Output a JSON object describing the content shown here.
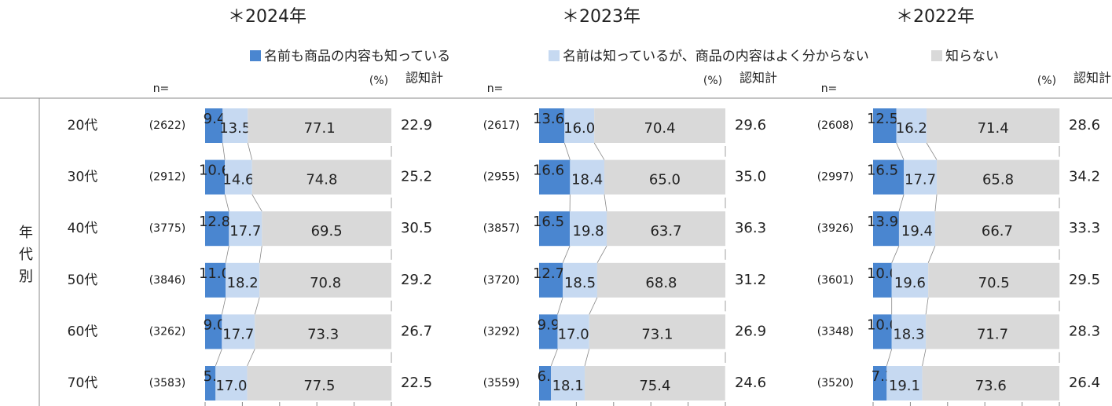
{
  "chart_data": {
    "type": "stacked_bar",
    "row_label": "年代別",
    "n_label": "n=",
    "unit_label": "(%)",
    "total_label": "認知計",
    "categories": [
      "20代",
      "30代",
      "40代",
      "50代",
      "60代",
      "70代"
    ],
    "series": [
      {
        "name": "名前も商品の内容も知っている",
        "color": "#4a86d0"
      },
      {
        "name": "名前は知っているが、商品の内容はよく分からない",
        "color": "#c6d9f1"
      },
      {
        "name": "知らない",
        "color": "#d9d9d9"
      }
    ],
    "xlim": [
      0,
      100
    ],
    "xticks": [
      0,
      20,
      40,
      60,
      80,
      100
    ],
    "panels": [
      {
        "title": "＊2024年",
        "n": [
          "(2622)",
          "(2912)",
          "(3775)",
          "(3846)",
          "(3262)",
          "(3583)"
        ],
        "values": [
          [
            9.4,
            10.6,
            12.8,
            11.0,
            9.0,
            5.6
          ],
          [
            13.5,
            14.6,
            17.7,
            18.2,
            17.7,
            17.0
          ],
          [
            77.1,
            74.8,
            69.5,
            70.8,
            73.3,
            77.5
          ]
        ],
        "value_labels": [
          [
            "9.4",
            "10.6",
            "12.8",
            "11.0",
            "9.0",
            "5.6"
          ],
          [
            "13.5",
            "14.6",
            "17.7",
            "18.2",
            "17.7",
            "17.0"
          ],
          [
            "77.1",
            "74.8",
            "69.5",
            "70.8",
            "73.3",
            "77.5"
          ]
        ],
        "totals": [
          22.9,
          25.2,
          30.5,
          29.2,
          26.7,
          22.5
        ],
        "total_labels": [
          "22.9",
          "25.2",
          "30.5",
          "29.2",
          "26.7",
          "22.5"
        ]
      },
      {
        "title": "＊2023年",
        "n": [
          "(2617)",
          "(2955)",
          "(3857)",
          "(3720)",
          "(3292)",
          "(3559)"
        ],
        "values": [
          [
            13.6,
            16.6,
            16.5,
            12.7,
            9.9,
            6.4
          ],
          [
            16.0,
            18.4,
            19.8,
            18.5,
            17.0,
            18.1
          ],
          [
            70.4,
            65.0,
            63.7,
            68.8,
            73.1,
            75.4
          ]
        ],
        "value_labels": [
          [
            "13.6",
            "16.6",
            "16.5",
            "12.7",
            "9.9",
            "6.4"
          ],
          [
            "16.0",
            "18.4",
            "19.8",
            "18.5",
            "17.0",
            "18.1"
          ],
          [
            "70.4",
            "65.0",
            "63.7",
            "68.8",
            "73.1",
            "75.4"
          ]
        ],
        "totals": [
          29.6,
          35.0,
          36.3,
          31.2,
          26.9,
          24.6
        ],
        "total_labels": [
          "29.6",
          "35.0",
          "36.3",
          "31.2",
          "26.9",
          "24.6"
        ]
      },
      {
        "title": "＊2022年",
        "n": [
          "(2608)",
          "(2997)",
          "(3926)",
          "(3601)",
          "(3348)",
          "(3520)"
        ],
        "values": [
          [
            12.5,
            16.5,
            13.9,
            10.0,
            10.0,
            7.3
          ],
          [
            16.2,
            17.7,
            19.4,
            19.6,
            18.3,
            19.1
          ],
          [
            71.4,
            65.8,
            66.7,
            70.5,
            71.7,
            73.6
          ]
        ],
        "value_labels": [
          [
            "12.5",
            "16.5",
            "13.9",
            "10.0",
            "10.0",
            "7.3"
          ],
          [
            "16.2",
            "17.7",
            "19.4",
            "19.6",
            "18.3",
            "19.1"
          ],
          [
            "71.4",
            "65.8",
            "66.7",
            "70.5",
            "71.7",
            "73.6"
          ]
        ],
        "totals": [
          28.6,
          34.2,
          33.3,
          29.5,
          28.3,
          26.4
        ],
        "total_labels": [
          "28.6",
          "34.2",
          "33.3",
          "29.5",
          "28.3",
          "26.4"
        ]
      }
    ]
  }
}
